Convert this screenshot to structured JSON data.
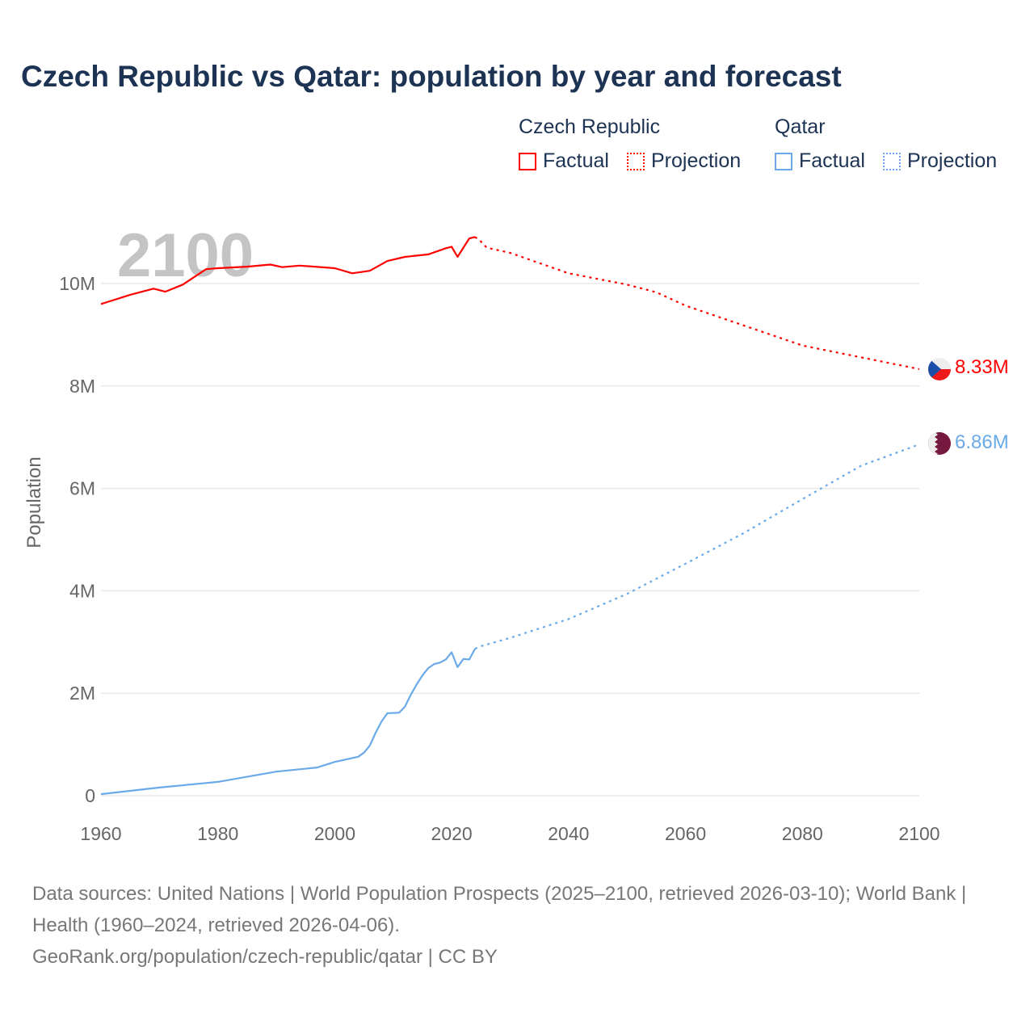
{
  "chart_data": {
    "type": "line",
    "title": "Czech Republic vs Qatar: population by year and forecast",
    "xlabel": "",
    "ylabel": "Population",
    "xlim": [
      1960,
      2100
    ],
    "ylim": [
      0,
      11000000
    ],
    "x_ticks": [
      "1960",
      "1980",
      "2000",
      "2020",
      "2040",
      "2060",
      "2080",
      "2100"
    ],
    "y_ticks": [
      {
        "v": 0,
        "label": "0"
      },
      {
        "v": 2000000,
        "label": "2M"
      },
      {
        "v": 4000000,
        "label": "4M"
      },
      {
        "v": 6000000,
        "label": "6M"
      },
      {
        "v": 8000000,
        "label": "8M"
      },
      {
        "v": 10000000,
        "label": "10M"
      }
    ],
    "year_watermark": "2100",
    "legend": {
      "groups": [
        {
          "name": "Czech Republic",
          "factual": "Factual",
          "projection": "Projection"
        },
        {
          "name": "Qatar",
          "factual": "Factual",
          "projection": "Projection"
        }
      ]
    },
    "series": [
      {
        "name": "Czech Republic",
        "color": "#ff0000",
        "end_label": "8.33M",
        "flag": "czech-flag",
        "factual": [
          [
            1960,
            9.6
          ],
          [
            1965,
            9.78
          ],
          [
            1969,
            9.9
          ],
          [
            1971,
            9.84
          ],
          [
            1974,
            9.98
          ],
          [
            1978,
            10.28
          ],
          [
            1980,
            10.3
          ],
          [
            1985,
            10.33
          ],
          [
            1989,
            10.37
          ],
          [
            1991,
            10.32
          ],
          [
            1994,
            10.35
          ],
          [
            2000,
            10.3
          ],
          [
            2003,
            10.2
          ],
          [
            2006,
            10.25
          ],
          [
            2009,
            10.44
          ],
          [
            2012,
            10.52
          ],
          [
            2016,
            10.57
          ],
          [
            2019,
            10.69
          ],
          [
            2020,
            10.72
          ],
          [
            2021,
            10.52
          ],
          [
            2023,
            10.88
          ],
          [
            2024,
            10.91
          ]
        ],
        "projection": [
          [
            2024,
            10.91
          ],
          [
            2025,
            10.82
          ],
          [
            2026,
            10.7
          ],
          [
            2030,
            10.6
          ],
          [
            2040,
            10.2
          ],
          [
            2050,
            9.98
          ],
          [
            2055,
            9.83
          ],
          [
            2060,
            9.57
          ],
          [
            2070,
            9.18
          ],
          [
            2080,
            8.79
          ],
          [
            2090,
            8.56
          ],
          [
            2100,
            8.33
          ]
        ]
      },
      {
        "name": "Qatar",
        "color": "#6aaae8",
        "end_label": "6.86M",
        "flag": "qatar-flag",
        "factual": [
          [
            1960,
            0.03
          ],
          [
            1970,
            0.16
          ],
          [
            1980,
            0.27
          ],
          [
            1990,
            0.47
          ],
          [
            1997,
            0.55
          ],
          [
            2000,
            0.66
          ],
          [
            2004,
            0.76
          ],
          [
            2005,
            0.84
          ],
          [
            2006,
            0.98
          ],
          [
            2007,
            1.23
          ],
          [
            2008,
            1.45
          ],
          [
            2009,
            1.61
          ],
          [
            2011,
            1.62
          ],
          [
            2012,
            1.74
          ],
          [
            2013,
            1.97
          ],
          [
            2014,
            2.17
          ],
          [
            2015,
            2.35
          ],
          [
            2016,
            2.49
          ],
          [
            2017,
            2.57
          ],
          [
            2018,
            2.6
          ],
          [
            2019,
            2.66
          ],
          [
            2020,
            2.8
          ],
          [
            2021,
            2.51
          ],
          [
            2022,
            2.67
          ],
          [
            2023,
            2.66
          ],
          [
            2024,
            2.87
          ]
        ],
        "projection": [
          [
            2024,
            2.87
          ],
          [
            2025,
            2.92
          ],
          [
            2030,
            3.08
          ],
          [
            2040,
            3.45
          ],
          [
            2050,
            3.94
          ],
          [
            2060,
            4.53
          ],
          [
            2070,
            5.13
          ],
          [
            2080,
            5.79
          ],
          [
            2090,
            6.44
          ],
          [
            2100,
            6.86
          ]
        ]
      }
    ]
  },
  "footer": {
    "sources": "Data sources: United Nations | World Population Prospects (2025–2100, retrieved 2026-03-10); World Bank | Health (1960–2024, retrieved 2026-04-06).",
    "link": "GeoRank.org/population/czech-republic/qatar | CC BY"
  }
}
